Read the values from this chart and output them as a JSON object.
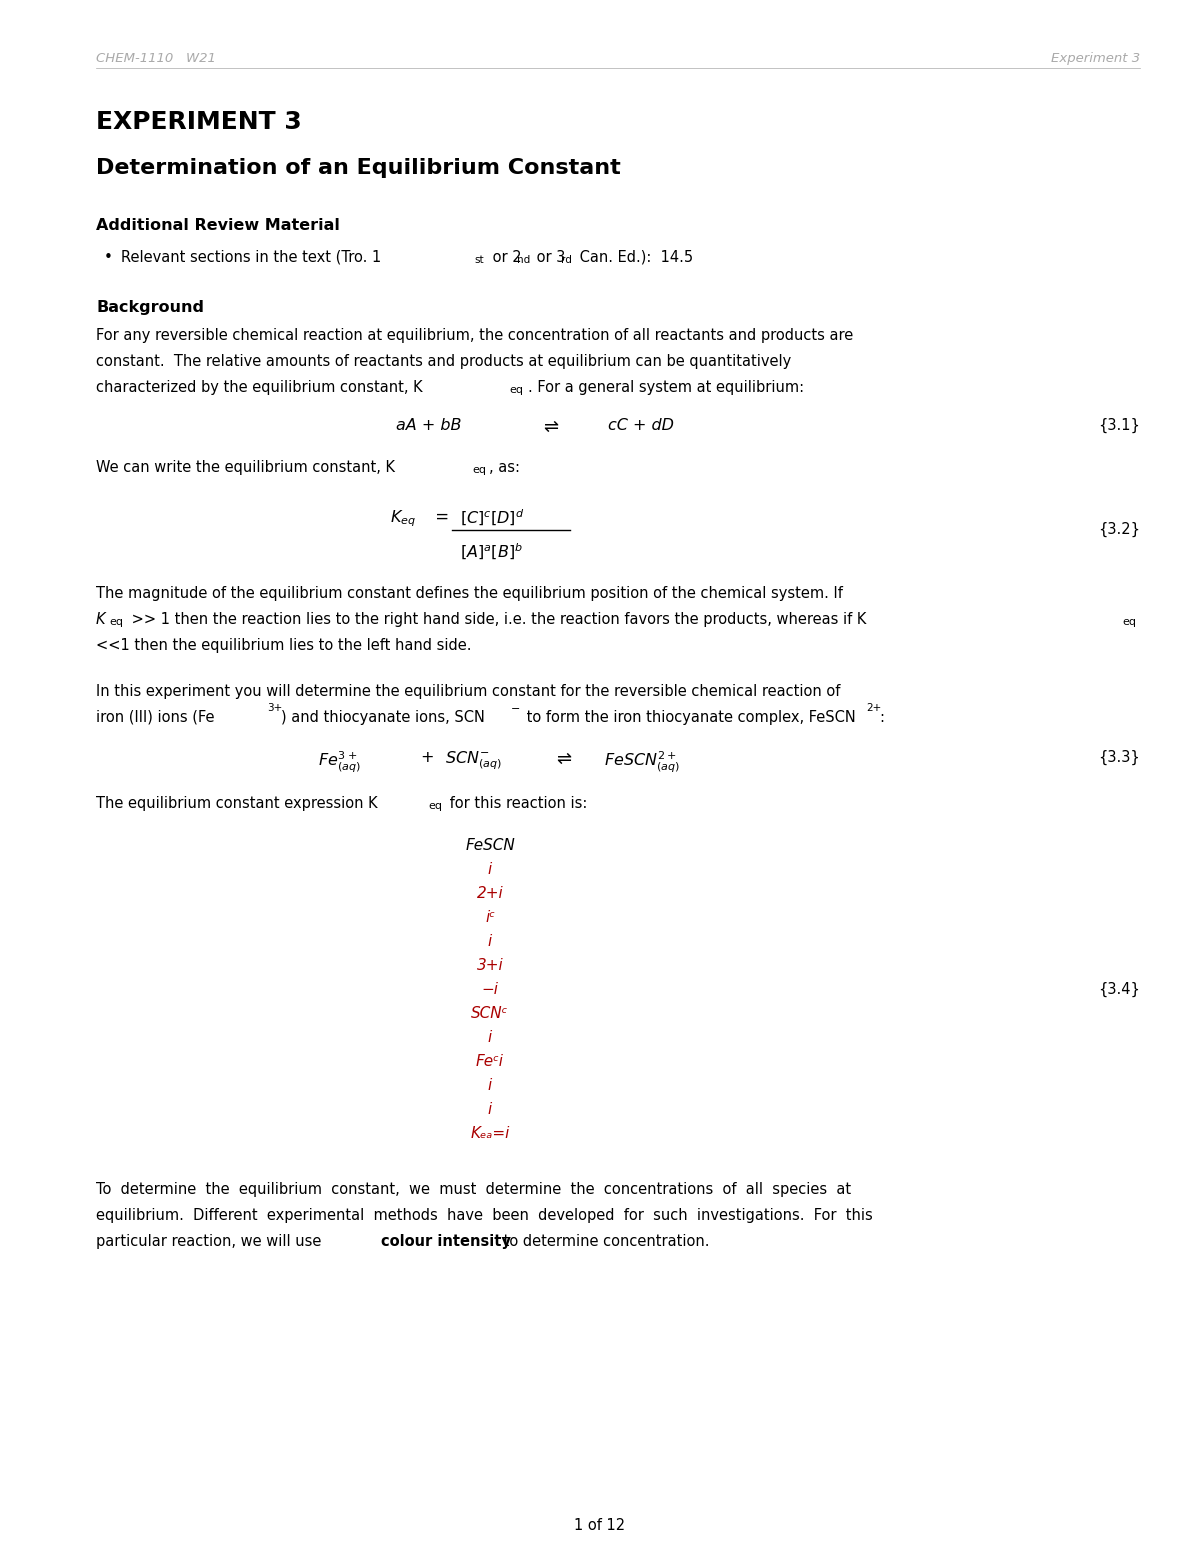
{
  "bg_color": "#ffffff",
  "header_left": "CHEM-1110   W21",
  "header_right": "Experiment 3",
  "header_color": "#aaaaaa",
  "title1": "EXPERIMENT 3",
  "title2": "Determination of an Equilibrium Constant",
  "section1_header": "Additional Review Material",
  "section2_header": "Background",
  "para1_line1": "For any reversible chemical reaction at equilibrium, the concentration of all reactants and products are",
  "para1_line2": "constant.  The relative amounts of reactants and products at equilibrium can be quantitatively",
  "para1_line3a": "characterized by the equilibrium constant, K",
  "para1_line3b": "eq",
  "para1_line3c": ". For a general system at equilibrium:",
  "eq31_label": "{3.1}",
  "para2_line1a": "We can write the equilibrium constant, K",
  "para2_line1b": "eq",
  "para2_line1c": ", as:",
  "eq32_label": "{3.2}",
  "para3_line1": "The magnitude of the equilibrium constant defines the equilibrium position of the chemical system. If",
  "para3_line2b": " >> 1 then the reaction lies to the right hand side, i.e. the reaction favors the products, whereas if K",
  "para3_line3": "<<1 then the equilibrium lies to the left hand side.",
  "para4_line1": "In this experiment you will determine the equilibrium constant for the reversible chemical reaction of",
  "para4_line2a": "iron (III) ions (Fe",
  "para4_line2c": ") and thiocyanate ions, SCN",
  "para4_line2e": " to form the iron thiocyanate complex, FeSCN",
  "para4_line2g": ":",
  "eq33_label": "{3.3}",
  "para5_line1a": "The equilibrium constant expression K",
  "para5_line1b": "eq",
  "para5_line1c": " for this reaction is:",
  "eq34_label": "{3.4}",
  "eq34_lines": [
    "FeSCN",
    "i",
    "2+i",
    "iᶜ",
    "i",
    "3+i",
    "−i",
    "SCNᶜ",
    "i",
    "Feᶜi",
    "i",
    "i",
    "Kₑₐ=i"
  ],
  "eq34_black_indices": [
    0
  ],
  "para6_line1": "To  determine  the  equilibrium  constant,  we  must  determine  the  concentrations  of  all  species  at",
  "para6_line2": "equilibrium.  Different  experimental  methods  have  been  developed  for  such  investigations.  For  this",
  "para6_line3a": "particular reaction, we will use ",
  "para6_line3b": "colour intensity",
  "para6_line3c": " to determine concentration.",
  "footer": "1 of 12",
  "text_color": "#000000",
  "gray_color": "#aaaaaa",
  "red_color": "#aa0000"
}
